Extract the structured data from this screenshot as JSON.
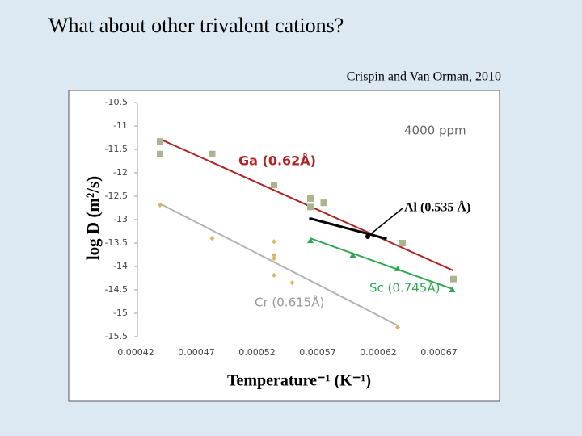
{
  "title": "What about other trivalent cations?",
  "citation": "Crispin and Van Orman, 2010",
  "chart_data": {
    "type": "scatter",
    "annotation": "4000 ppm",
    "ylabel": "log D (m²/s)",
    "xlabel": "Temperature⁻¹ (K⁻¹)",
    "xlim": [
      0.00042,
      0.0007
    ],
    "ylim": [
      -15.5,
      -10.5
    ],
    "xticks": [
      0.00042,
      0.00047,
      0.00052,
      0.00057,
      0.00062,
      0.00067
    ],
    "yticks": [
      -10.5,
      -11,
      -11.5,
      -12,
      -12.5,
      -13,
      -13.5,
      -14,
      -14.5,
      -15,
      -15.5
    ],
    "series": [
      {
        "name": "Ga (0.62Å)",
        "color": "#a9b58f",
        "line_color": "#b02323",
        "marker": "square",
        "x": [
          0.00044,
          0.00044,
          0.000483,
          0.000534,
          0.000564,
          0.000564,
          0.000575,
          0.00064,
          0.000682
        ],
        "y": [
          -11.33,
          -11.6,
          -11.6,
          -12.26,
          -12.55,
          -12.73,
          -12.64,
          -13.5,
          -14.27
        ],
        "trend": {
          "x": [
            0.00044,
            0.000682
          ],
          "y": [
            -11.28,
            -14.09
          ]
        }
      },
      {
        "name": "Cr (0.615Å)",
        "color": "#d6b75e",
        "line_color": "#b3b3b3",
        "marker": "diamond",
        "x": [
          0.00044,
          0.000483,
          0.000534,
          0.000534,
          0.000534,
          0.000534,
          0.000549,
          0.000636
        ],
        "y": [
          -12.69,
          -13.4,
          -13.47,
          -13.76,
          -13.83,
          -14.19,
          -14.35,
          -15.3
        ],
        "trend": {
          "x": [
            0.00044,
            0.000636
          ],
          "y": [
            -12.66,
            -15.26
          ]
        }
      },
      {
        "name": "Sc (0.745Å)",
        "color": "#2ea84f",
        "line_color": "#2ea84f",
        "marker": "triangle",
        "x": [
          0.000564,
          0.000599,
          0.000636,
          0.000681
        ],
        "y": [
          -13.45,
          -13.76,
          -14.05,
          -14.5
        ],
        "trend": {
          "x": [
            0.000564,
            0.000681
          ],
          "y": [
            -13.4,
            -14.48
          ]
        }
      },
      {
        "name": "Al (0.535 Å)",
        "color": "#000000",
        "line_color": "#000000",
        "marker": "none",
        "trend": {
          "x": [
            0.000563,
            0.000627
          ],
          "y": [
            -12.97,
            -13.41
          ]
        }
      }
    ]
  }
}
